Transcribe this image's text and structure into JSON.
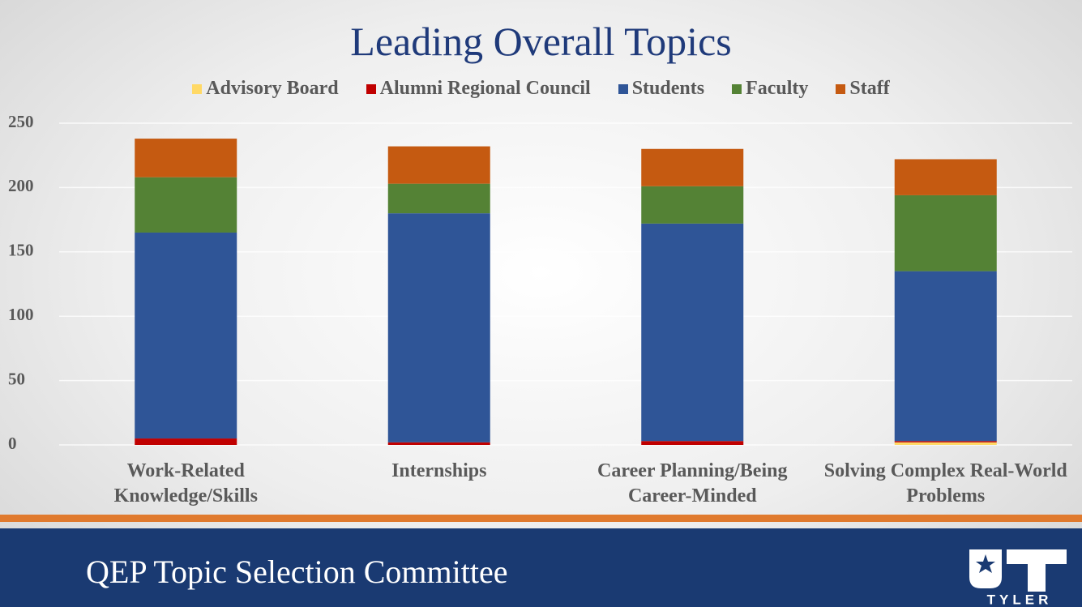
{
  "chart_data": {
    "type": "stacked_bar",
    "title": "Leading Overall Topics",
    "categories": [
      "Work-Related Knowledge/Skills",
      "Internships",
      "Career Planning/Being Career-Minded",
      "Solving Complex Real-World Problems"
    ],
    "series": [
      {
        "name": "Advisory Board",
        "color": "#ffd966",
        "values": [
          0,
          0,
          0,
          2
        ]
      },
      {
        "name": "Alumni Regional Council",
        "color": "#c00000",
        "values": [
          5,
          2,
          3,
          1
        ]
      },
      {
        "name": "Students",
        "color": "#2f5597",
        "values": [
          160,
          178,
          169,
          132
        ]
      },
      {
        "name": "Faculty",
        "color": "#548235",
        "values": [
          43,
          23,
          29,
          59
        ]
      },
      {
        "name": "Staff",
        "color": "#c55a11",
        "values": [
          30,
          29,
          29,
          28
        ]
      }
    ],
    "ylim": [
      0,
      250
    ],
    "yticks": [
      0,
      50,
      100,
      150,
      200,
      250
    ],
    "grid": true,
    "legend": "top"
  },
  "footer": {
    "title": "QEP Topic Selection Committee",
    "logo_text": "TYLER"
  }
}
